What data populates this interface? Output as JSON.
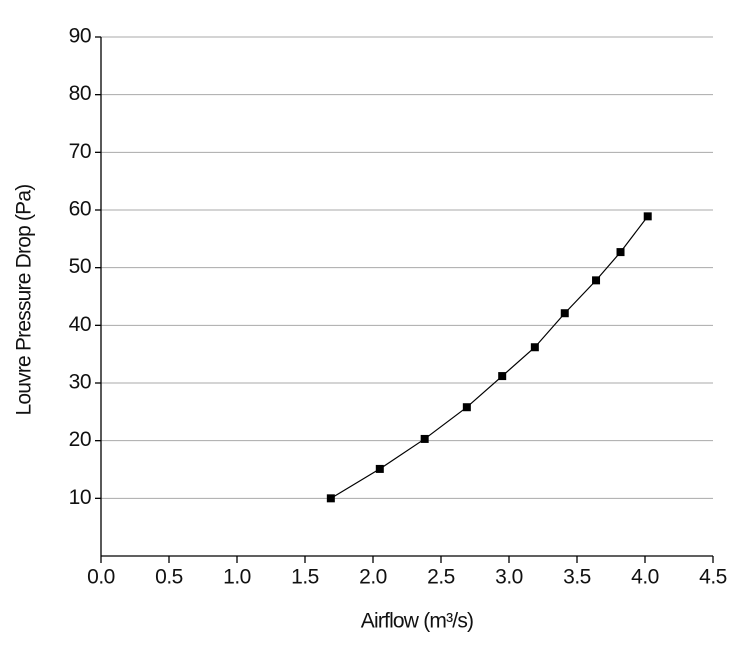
{
  "chart_data": {
    "type": "line",
    "xlabel": "Airflow (m³/s)",
    "ylabel": "Louvre Pressure Drop (Pa)",
    "x": [
      1.69,
      2.05,
      2.38,
      2.69,
      2.95,
      3.19,
      3.41,
      3.64,
      3.82,
      4.02
    ],
    "series": [
      {
        "color": "#000000",
        "values": [
          10,
          15.1,
          20.3,
          25.8,
          31.2,
          36.2,
          42.1,
          47.8,
          52.7,
          58.9
        ]
      }
    ],
    "xlim": [
      0,
      4.5
    ],
    "xticks": [
      {
        "value": 0,
        "label": "0.0"
      },
      0.5,
      {
        "value": 1,
        "label": "1.0"
      },
      1.5,
      {
        "value": 2,
        "label": "2.0"
      },
      2.5,
      {
        "value": 3,
        "label": "3.0"
      },
      3.5,
      {
        "value": 4,
        "label": "4.0"
      },
      4.5
    ],
    "ylim": [
      0,
      90
    ],
    "yticks": [
      10,
      20,
      30,
      40,
      50,
      60,
      70,
      80,
      90
    ],
    "grid": true
  }
}
